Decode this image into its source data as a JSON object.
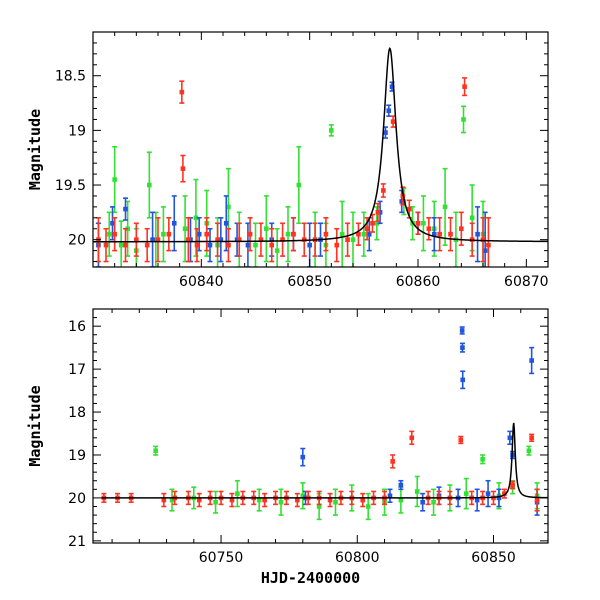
{
  "colors": {
    "green": "#33e033",
    "blue": "#2255dd",
    "red": "#ff3322",
    "model": "#000000"
  },
  "chart_data": [
    {
      "type": "scatter",
      "title": "",
      "xlabel": "",
      "ylabel": "Magnitude",
      "xlim": [
        60830,
        60872
      ],
      "ylim": [
        20.25,
        18.1
      ],
      "y_inverted": true,
      "xticks": [
        60840,
        60850,
        60860,
        60870
      ],
      "xtick_labels": [
        "60840",
        "60850",
        "60860",
        "60870"
      ],
      "yticks": [
        18.5,
        19,
        19.5,
        20
      ],
      "ytick_labels": [
        "18.5",
        "19",
        "19.5",
        "20"
      ],
      "grid": false,
      "legend": "none",
      "series": [
        {
          "color_key": "green",
          "points": [
            [
              60831.5,
              19.95,
              0.2
            ],
            [
              60832.0,
              19.45,
              0.3
            ],
            [
              60832.6,
              20.05,
              0.22
            ],
            [
              60833.2,
              19.9,
              0.25
            ],
            [
              60834.0,
              20.1,
              0.2
            ],
            [
              60835.2,
              19.5,
              0.3
            ],
            [
              60835.8,
              20.0,
              0.25
            ],
            [
              60836.5,
              19.95,
              0.25
            ],
            [
              60838.5,
              19.9,
              0.3
            ],
            [
              60839.5,
              19.8,
              0.35
            ],
            [
              60840.5,
              19.85,
              0.3
            ],
            [
              60841.5,
              20.05,
              0.25
            ],
            [
              60842.5,
              19.7,
              0.35
            ],
            [
              60843.5,
              20.0,
              0.25
            ],
            [
              60845.0,
              20.05,
              0.2
            ],
            [
              60846.0,
              19.9,
              0.3
            ],
            [
              60847.0,
              20.1,
              0.2
            ],
            [
              60848.0,
              19.95,
              0.25
            ],
            [
              60849.0,
              19.5,
              0.35
            ],
            [
              60850.5,
              20.0,
              0.25
            ],
            [
              60851.5,
              20.05,
              0.2
            ],
            [
              60852.0,
              19.0,
              0.05
            ],
            [
              60853.0,
              19.95,
              0.3
            ],
            [
              60854.0,
              20.0,
              0.25
            ],
            [
              60855.0,
              19.95,
              0.2
            ],
            [
              60856.2,
              19.85,
              0.15
            ],
            [
              60858.7,
              19.65,
              0.12
            ],
            [
              60859.5,
              19.85,
              0.15
            ],
            [
              60860.5,
              19.85,
              0.25
            ],
            [
              60861.5,
              19.9,
              0.25
            ],
            [
              60862.5,
              19.7,
              0.35
            ],
            [
              60863.5,
              20.0,
              0.25
            ],
            [
              60864.2,
              18.9,
              0.12
            ],
            [
              60865.0,
              19.8,
              0.3
            ],
            [
              60866.0,
              19.95,
              0.3
            ]
          ]
        },
        {
          "color_key": "blue",
          "points": [
            [
              60830.5,
              20.05,
              0.2
            ],
            [
              60831.8,
              19.85,
              0.15
            ],
            [
              60833.0,
              19.72,
              0.1
            ],
            [
              60835.5,
              20.0,
              0.25
            ],
            [
              60837.5,
              19.85,
              0.25
            ],
            [
              60839.0,
              20.0,
              0.2
            ],
            [
              60839.8,
              19.95,
              0.15
            ],
            [
              60840.8,
              20.05,
              0.15
            ],
            [
              60841.8,
              20.0,
              0.2
            ],
            [
              60842.3,
              19.85,
              0.25
            ],
            [
              60843.3,
              20.0,
              0.15
            ],
            [
              60844.3,
              20.05,
              0.2
            ],
            [
              60846.5,
              20.0,
              0.15
            ],
            [
              60848.5,
              19.95,
              0.15
            ],
            [
              60850.0,
              20.05,
              0.2
            ],
            [
              60851.0,
              20.0,
              0.15
            ],
            [
              60855.5,
              19.95,
              0.15
            ],
            [
              60856.5,
              19.75,
              0.1
            ],
            [
              60857.0,
              19.02,
              0.05
            ],
            [
              60857.3,
              18.82,
              0.05
            ],
            [
              60857.6,
              18.6,
              0.04
            ],
            [
              60858.5,
              19.65,
              0.1
            ],
            [
              60860.0,
              19.85,
              0.1
            ],
            [
              60861.5,
              19.95,
              0.15
            ],
            [
              60865.5,
              19.95,
              0.25
            ],
            [
              60866.2,
              20.1,
              0.35
            ]
          ]
        },
        {
          "color_key": "red",
          "points": [
            [
              60830.5,
              20.0,
              0.2
            ],
            [
              60831.2,
              20.05,
              0.15
            ],
            [
              60832.0,
              19.95,
              0.15
            ],
            [
              60833.0,
              20.05,
              0.15
            ],
            [
              60834.0,
              20.0,
              0.15
            ],
            [
              60835.0,
              20.05,
              0.15
            ],
            [
              60836.0,
              20.0,
              0.2
            ],
            [
              60837.0,
              19.95,
              0.15
            ],
            [
              60838.2,
              18.65,
              0.1
            ],
            [
              60838.3,
              19.35,
              0.12
            ],
            [
              60838.8,
              20.0,
              0.2
            ],
            [
              60839.6,
              20.05,
              0.15
            ],
            [
              60840.5,
              19.95,
              0.15
            ],
            [
              60841.5,
              20.0,
              0.15
            ],
            [
              60842.5,
              20.05,
              0.15
            ],
            [
              60843.5,
              20.0,
              0.15
            ],
            [
              60844.5,
              19.95,
              0.15
            ],
            [
              60845.5,
              20.0,
              0.15
            ],
            [
              60846.5,
              20.05,
              0.15
            ],
            [
              60847.5,
              20.0,
              0.15
            ],
            [
              60848.5,
              19.95,
              0.15
            ],
            [
              60849.5,
              20.0,
              0.15
            ],
            [
              60850.5,
              20.0,
              0.15
            ],
            [
              60851.5,
              19.95,
              0.15
            ],
            [
              60852.5,
              20.05,
              0.15
            ],
            [
              60853.5,
              20.0,
              0.15
            ],
            [
              60854.5,
              19.95,
              0.1
            ],
            [
              60855.3,
              19.9,
              0.1
            ],
            [
              60855.8,
              19.85,
              0.08
            ],
            [
              60856.3,
              19.75,
              0.08
            ],
            [
              60856.8,
              19.55,
              0.06
            ],
            [
              60857.7,
              18.92,
              0.05
            ],
            [
              60858.6,
              19.6,
              0.08
            ],
            [
              60859.2,
              19.72,
              0.08
            ],
            [
              60860.0,
              19.85,
              0.1
            ],
            [
              60861.0,
              19.9,
              0.1
            ],
            [
              60862.0,
              19.95,
              0.15
            ],
            [
              60863.0,
              19.95,
              0.15
            ],
            [
              60864.0,
              19.9,
              0.15
            ],
            [
              60864.3,
              18.6,
              0.08
            ],
            [
              60865.0,
              20.0,
              0.15
            ],
            [
              60866.0,
              20.0,
              0.2
            ],
            [
              60866.5,
              20.05,
              0.25
            ]
          ]
        }
      ],
      "model": {
        "color_key": "model",
        "baseline": 20.02,
        "peak_mag": 18.25,
        "peak_x": 60857.4,
        "width": 0.7
      }
    },
    {
      "type": "scatter",
      "title": "",
      "xlabel": "HJD-2400000",
      "ylabel": "Magnitude",
      "xlim": [
        60703,
        60870
      ],
      "ylim": [
        21.05,
        15.6
      ],
      "y_inverted": true,
      "xticks": [
        60750,
        60800,
        60850
      ],
      "xtick_labels": [
        "60750",
        "60800",
        "60850"
      ],
      "yticks": [
        16,
        17,
        18,
        19,
        20,
        21
      ],
      "ytick_labels": [
        "16",
        "17",
        "18",
        "19",
        "20",
        "21"
      ],
      "grid": false,
      "legend": "none",
      "series": [
        {
          "color_key": "green",
          "points": [
            [
              60726,
              18.9,
              0.1
            ],
            [
              60732,
              20.05,
              0.25
            ],
            [
              60740,
              20.0,
              0.25
            ],
            [
              60748,
              20.1,
              0.25
            ],
            [
              60756,
              19.9,
              0.3
            ],
            [
              60764,
              20.05,
              0.25
            ],
            [
              60772,
              20.1,
              0.3
            ],
            [
              60780,
              19.95,
              0.3
            ],
            [
              60786,
              20.2,
              0.3
            ],
            [
              60792,
              20.1,
              0.3
            ],
            [
              60798,
              20.0,
              0.3
            ],
            [
              60804,
              20.2,
              0.3
            ],
            [
              60810,
              20.1,
              0.3
            ],
            [
              60816,
              20.05,
              0.3
            ],
            [
              60822,
              19.85,
              0.35
            ],
            [
              60828,
              20.1,
              0.3
            ],
            [
              60834,
              20.0,
              0.3
            ],
            [
              60840,
              19.9,
              0.35
            ],
            [
              60846,
              19.1,
              0.1
            ],
            [
              60852,
              19.95,
              0.3
            ],
            [
              60857,
              19.75,
              0.15
            ],
            [
              60863,
              18.9,
              0.1
            ],
            [
              60866,
              19.95,
              0.3
            ]
          ]
        },
        {
          "color_key": "blue",
          "points": [
            [
              60780,
              19.05,
              0.2
            ],
            [
              60781,
              20.0,
              0.15
            ],
            [
              60812,
              19.95,
              0.15
            ],
            [
              60816,
              19.7,
              0.1
            ],
            [
              60824,
              20.1,
              0.2
            ],
            [
              60830,
              19.95,
              0.2
            ],
            [
              60837,
              20.0,
              0.2
            ],
            [
              60838.5,
              16.1,
              0.08
            ],
            [
              60838.6,
              16.5,
              0.1
            ],
            [
              60838.7,
              17.25,
              0.2
            ],
            [
              60844,
              20.05,
              0.25
            ],
            [
              60848,
              19.9,
              0.3
            ],
            [
              60852,
              20.0,
              0.2
            ],
            [
              60856,
              18.6,
              0.15
            ],
            [
              60857,
              19.0,
              0.08
            ],
            [
              60864,
              16.8,
              0.3
            ],
            [
              60866,
              20.1,
              0.3
            ]
          ]
        },
        {
          "color_key": "red",
          "points": [
            [
              60707,
              20.0,
              0.1
            ],
            [
              60712,
              20.0,
              0.1
            ],
            [
              60717,
              20.0,
              0.1
            ],
            [
              60729,
              20.05,
              0.15
            ],
            [
              60733,
              20.0,
              0.15
            ],
            [
              60738,
              20.0,
              0.15
            ],
            [
              60742,
              20.05,
              0.15
            ],
            [
              60746,
              20.0,
              0.15
            ],
            [
              60750,
              20.0,
              0.15
            ],
            [
              60754,
              20.05,
              0.15
            ],
            [
              60758,
              20.0,
              0.15
            ],
            [
              60762,
              20.0,
              0.15
            ],
            [
              60766,
              20.05,
              0.15
            ],
            [
              60770,
              20.0,
              0.15
            ],
            [
              60774,
              20.0,
              0.15
            ],
            [
              60778,
              20.05,
              0.15
            ],
            [
              60782,
              20.0,
              0.15
            ],
            [
              60786,
              20.0,
              0.15
            ],
            [
              60790,
              20.05,
              0.15
            ],
            [
              60794,
              20.0,
              0.15
            ],
            [
              60798,
              20.0,
              0.15
            ],
            [
              60802,
              20.05,
              0.15
            ],
            [
              60806,
              20.0,
              0.15
            ],
            [
              60810,
              20.0,
              0.15
            ],
            [
              60813,
              19.15,
              0.15
            ],
            [
              60820,
              18.6,
              0.15
            ],
            [
              60826,
              20.0,
              0.15
            ],
            [
              60830,
              20.0,
              0.15
            ],
            [
              60834,
              20.0,
              0.15
            ],
            [
              60838,
              18.65,
              0.08
            ],
            [
              60842,
              20.0,
              0.15
            ],
            [
              60846,
              20.0,
              0.15
            ],
            [
              60850,
              20.0,
              0.15
            ],
            [
              60854,
              19.9,
              0.1
            ],
            [
              60857,
              19.7,
              0.08
            ],
            [
              60864,
              18.6,
              0.08
            ],
            [
              60866,
              20.05,
              0.25
            ]
          ]
        }
      ],
      "model": {
        "color_key": "model",
        "baseline": 20.0,
        "peak_mag": 18.25,
        "peak_x": 60857.4,
        "width": 0.7,
        "x_start": 60706,
        "x_end": 60870
      }
    }
  ]
}
